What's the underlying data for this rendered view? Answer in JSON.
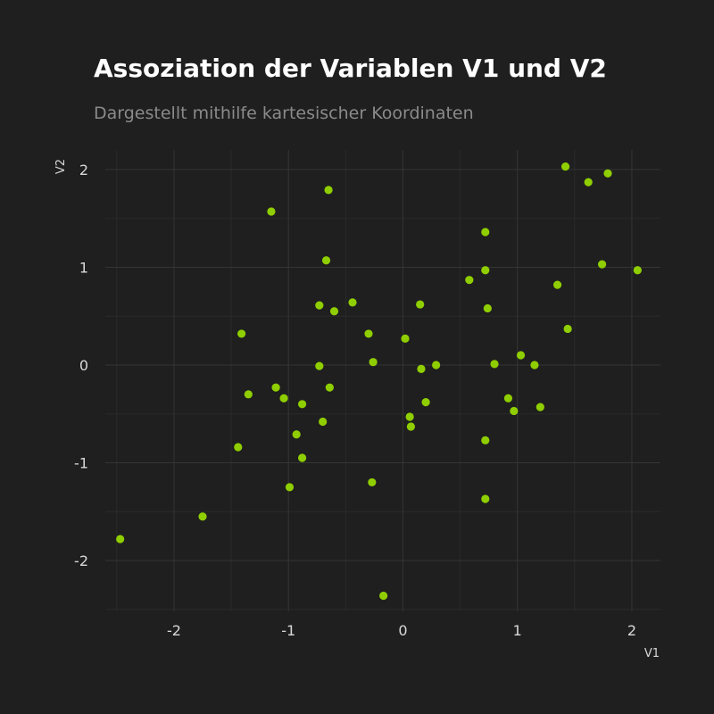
{
  "chart_data": {
    "type": "scatter",
    "title": "Assoziation der Variablen V1 und V2",
    "subtitle": "Dargestellt mithilfe kartesischer Koordinaten",
    "xlabel": "V1",
    "ylabel": "V2",
    "xlim": [
      -2.6,
      2.25
    ],
    "ylim": [
      -2.52,
      2.2
    ],
    "xticks": [
      -2,
      -1,
      0,
      1,
      2
    ],
    "yticks": [
      -2,
      -1,
      0,
      1,
      2
    ],
    "x_tick_labels": [
      "-2",
      "-1",
      "0",
      "1",
      "2"
    ],
    "y_tick_labels": [
      "-2",
      "-1",
      "0",
      "1",
      "2"
    ],
    "grid": true,
    "point_color": "#8fce00",
    "background_color": "#1f1f1f",
    "points": [
      {
        "x": -2.47,
        "y": -1.78
      },
      {
        "x": -1.75,
        "y": -1.55
      },
      {
        "x": -1.44,
        "y": -0.84
      },
      {
        "x": -1.41,
        "y": 0.32
      },
      {
        "x": -1.35,
        "y": -0.3
      },
      {
        "x": -1.15,
        "y": 1.57
      },
      {
        "x": -1.11,
        "y": -0.23
      },
      {
        "x": -1.04,
        "y": -0.34
      },
      {
        "x": -0.99,
        "y": -1.25
      },
      {
        "x": -0.93,
        "y": -0.71
      },
      {
        "x": -0.88,
        "y": -0.4
      },
      {
        "x": -0.88,
        "y": -0.95
      },
      {
        "x": -0.73,
        "y": 0.61
      },
      {
        "x": -0.73,
        "y": -0.01
      },
      {
        "x": -0.7,
        "y": -0.58
      },
      {
        "x": -0.67,
        "y": 1.07
      },
      {
        "x": -0.65,
        "y": 1.79
      },
      {
        "x": -0.64,
        "y": -0.23
      },
      {
        "x": -0.6,
        "y": 0.55
      },
      {
        "x": -0.44,
        "y": 0.64
      },
      {
        "x": -0.3,
        "y": 0.32
      },
      {
        "x": -0.27,
        "y": -1.2
      },
      {
        "x": -0.26,
        "y": 0.03
      },
      {
        "x": -0.17,
        "y": -2.36
      },
      {
        "x": 0.02,
        "y": 0.27
      },
      {
        "x": 0.06,
        "y": -0.53
      },
      {
        "x": 0.07,
        "y": -0.63
      },
      {
        "x": 0.15,
        "y": 0.62
      },
      {
        "x": 0.16,
        "y": -0.04
      },
      {
        "x": 0.2,
        "y": -0.38
      },
      {
        "x": 0.29,
        "y": 0.0
      },
      {
        "x": 0.58,
        "y": 0.87
      },
      {
        "x": 0.72,
        "y": 1.36
      },
      {
        "x": 0.72,
        "y": 0.97
      },
      {
        "x": 0.72,
        "y": -0.77
      },
      {
        "x": 0.72,
        "y": -1.37
      },
      {
        "x": 0.74,
        "y": 0.58
      },
      {
        "x": 0.8,
        "y": 0.01
      },
      {
        "x": 0.92,
        "y": -0.34
      },
      {
        "x": 0.97,
        "y": -0.47
      },
      {
        "x": 1.03,
        "y": 0.1
      },
      {
        "x": 1.15,
        "y": 0.0
      },
      {
        "x": 1.2,
        "y": -0.43
      },
      {
        "x": 1.35,
        "y": 0.82
      },
      {
        "x": 1.42,
        "y": 2.03
      },
      {
        "x": 1.44,
        "y": 0.37
      },
      {
        "x": 1.62,
        "y": 1.87
      },
      {
        "x": 1.74,
        "y": 1.03
      },
      {
        "x": 1.79,
        "y": 1.96
      },
      {
        "x": 2.05,
        "y": 0.97
      }
    ]
  }
}
